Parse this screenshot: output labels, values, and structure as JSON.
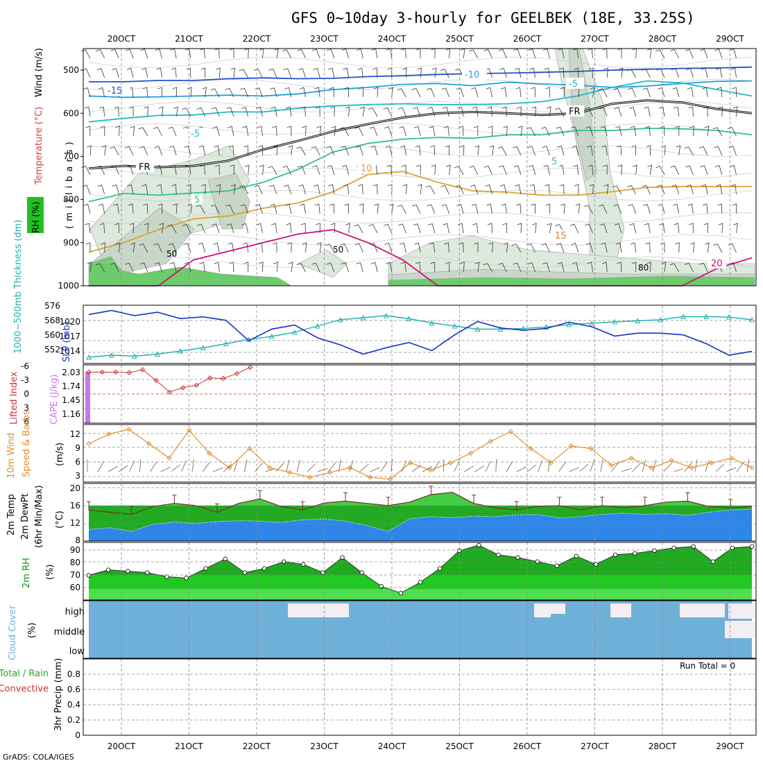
{
  "title": "GFS 0~10day 3-hourly for GEELBEK (18E, 33.25S)",
  "credit": "GrADS: COLA/IGES",
  "run_total": "Run Total = 0",
  "x_ticks": [
    "20OCT",
    "21OCT",
    "22OCT",
    "23OCT",
    "24OCT",
    "25OCT",
    "26OCT",
    "27OCT",
    "28OCT",
    "29OCT"
  ],
  "colors": {
    "grid": "#888888",
    "dewpoint": "#2e86e8",
    "temp": "#22b022",
    "rh": "#0a9a0a",
    "cloud": "#6fb0d8",
    "slp": "#1530c8",
    "thickness": "#20b0b0",
    "cape": "#c878e8",
    "li": "#d03030",
    "wind": "#e09030"
  },
  "chart_data": [
    {
      "type": "contour",
      "name": "upper_air",
      "y_ticks": [
        "500",
        "600",
        "700",
        "800",
        "900",
        "1000"
      ],
      "ylim": [
        1000,
        450
      ],
      "labels": {
        "wind": "Wind (m/s)",
        "temperature": "Temperature (°C)",
        "rh": "RH (%)",
        "axis": "(millibars)",
        "isotherms": [
          "-15",
          "-10",
          "-5",
          "-5",
          "5",
          "5",
          "10",
          "15",
          "20",
          "FR",
          "FR"
        ],
        "rh_contours": [
          "50",
          "50",
          "80"
        ]
      },
      "isotherms": [
        {
          "level": -15,
          "color": "#2050d0",
          "p": [
            527,
            527,
            524,
            524,
            520,
            518,
            520,
            519,
            515,
            513,
            510,
            508,
            507,
            505,
            503,
            500,
            498,
            496,
            495,
            493
          ]
        },
        {
          "level": -10,
          "color": "#20a0e0",
          "p": [
            560,
            563,
            562,
            560,
            558,
            560,
            555,
            545,
            540,
            533,
            531,
            536,
            528,
            532,
            535,
            540,
            537,
            531,
            526,
            525
          ]
        },
        {
          "level": -5,
          "color": "#20b8c8",
          "p": [
            620,
            612,
            605,
            604,
            597,
            597,
            588,
            583,
            580,
            578,
            580,
            580,
            578,
            573,
            560,
            540,
            525,
            530,
            545,
            560
          ]
        },
        {
          "level": 0,
          "color": "#000000",
          "p": [
            728,
            722,
            725,
            722,
            710,
            684,
            664,
            642,
            625,
            610,
            600,
            597,
            600,
            604,
            600,
            578,
            570,
            575,
            590,
            600
          ]
        },
        {
          "level": 5,
          "color": "#30c090",
          "p": [
            805,
            786,
            790,
            785,
            780,
            760,
            730,
            690,
            670,
            660,
            656,
            658,
            650,
            650,
            640,
            640,
            635,
            636,
            640,
            650
          ]
        },
        {
          "level": 10,
          "color": "#e0a030",
          "p": [
            922,
            900,
            870,
            845,
            838,
            820,
            808,
            782,
            742,
            735,
            760,
            780,
            783,
            790,
            790,
            782,
            772,
            770,
            770,
            770
          ]
        },
        {
          "level": 20,
          "color": "#d0107a",
          "p": [
            1000,
            1000,
            1000,
            940,
            920,
            900,
            880,
            870,
            900,
            940,
            1000,
            1000,
            1000,
            1000,
            1000,
            1000,
            1000,
            1000,
            960,
            935
          ]
        }
      ]
    },
    {
      "type": "line",
      "name": "slp_thickness",
      "labels": {
        "thickness": "1000~500mb Thickness (dm)",
        "slp": "SLP (mb)"
      },
      "y_ticks_left": [
        "576",
        "568",
        "560",
        "552"
      ],
      "y_ticks_right": [
        "1020",
        "1017",
        "1014"
      ],
      "thickness_ylim": [
        548,
        576
      ],
      "slp_ylim": [
        1012.6,
        1022.6
      ],
      "series": [
        {
          "name": "SLP",
          "values": [
            1021.0,
            1021.7,
            1020.8,
            1021.4,
            1020.3,
            1020.6,
            1020.0,
            1016.5,
            1018.5,
            1019.2,
            1017.0,
            1015.8,
            1014.2,
            1015.3,
            1016.2,
            1014.8,
            1017.5,
            1019.8,
            1018.7,
            1018.3,
            1018.6,
            1019.7,
            1018.9,
            1017.3,
            1017.8,
            1017.8,
            1017.5,
            1016.0,
            1014.0,
            1014.7
          ]
        },
        {
          "name": "Thickness",
          "values": [
            551.0,
            552.0,
            551.5,
            552.5,
            554.0,
            555.5,
            557.5,
            559.5,
            561.0,
            563.0,
            566.0,
            569.0,
            570.0,
            571.0,
            569.5,
            567.5,
            566.0,
            564.5,
            564.5,
            564.8,
            565.5,
            566.7,
            567.3,
            568.0,
            568.5,
            569.0,
            570.5,
            570.5,
            570.3,
            569.0
          ]
        }
      ]
    },
    {
      "type": "line",
      "name": "instability",
      "labels": {
        "li": "Lifted Index",
        "cape": "CAPE (J/kg)"
      },
      "y_ticks_li": [
        "-6",
        "-3",
        "0",
        "3",
        "6"
      ],
      "y_ticks_cape": [
        "2.03",
        "1.74",
        "1.45",
        "1.16"
      ],
      "li_ylim": [
        6,
        -6
      ],
      "li": [
        4.5,
        4.5,
        4.5,
        4.4,
        5.0,
        2.8,
        0.4,
        1.3,
        1.8,
        3.3,
        3.2,
        4.2,
        5.5
      ],
      "cape_bar": 2.03
    },
    {
      "type": "line",
      "name": "wind10m",
      "labels": {
        "title": "10m Wind",
        "sub": "Speed & Barbs",
        "unit": "(m/s)"
      },
      "y_ticks": [
        "12",
        "9",
        "6",
        "3"
      ],
      "ylim": [
        2,
        14
      ],
      "values": [
        10.0,
        12.0,
        13.0,
        10.0,
        7.0,
        12.8,
        8.0,
        5.0,
        9.0,
        5.0,
        4.0,
        3.0,
        4.0,
        5.0,
        3.0,
        2.6,
        6.0,
        4.5,
        6.0,
        8.0,
        10.5,
        12.5,
        9.0,
        6.0,
        9.5,
        9.0,
        5.5,
        7.0,
        5.0,
        6.5,
        5.0,
        6.0,
        7.0,
        5.0
      ]
    },
    {
      "type": "area",
      "name": "temp2m",
      "labels": {
        "title": "2m Temp",
        "sub": "2m DewPt",
        "sub2": "(6hr Min/Max)",
        "unit": "(°C)"
      },
      "y_ticks": [
        "20",
        "16",
        "12",
        "8"
      ],
      "ylim": [
        8,
        21
      ],
      "temp": [
        15.0,
        14.5,
        14.0,
        15.8,
        16.5,
        16.0,
        14.5,
        16.5,
        17.5,
        15.8,
        15.0,
        16.6,
        17.0,
        16.5,
        16.0,
        16.8,
        18.5,
        19.0,
        16.5,
        15.5,
        15.0,
        15.8,
        16.0,
        15.0,
        16.0,
        15.5,
        16.0,
        16.8,
        17.0,
        15.8,
        15.5,
        15.8
      ],
      "dewpt": [
        10.6,
        11.0,
        10.2,
        11.8,
        12.3,
        12.0,
        12.4,
        12.6,
        12.5,
        12.2,
        12.8,
        13.0,
        12.5,
        11.5,
        10.2,
        13.0,
        13.5,
        13.3,
        13.6,
        13.5,
        13.9,
        14.0,
        13.2,
        13.5,
        14.0,
        14.3,
        14.0,
        14.2,
        13.8,
        14.5,
        15.0,
        15.2
      ]
    },
    {
      "type": "area",
      "name": "rh2m",
      "labels": {
        "title": "2m RH",
        "unit": "(%)"
      },
      "y_ticks": [
        "90",
        "80",
        "70",
        "60"
      ],
      "ylim": [
        52,
        94
      ],
      "values": [
        70,
        74,
        73,
        72,
        69,
        68,
        75,
        82,
        72,
        75,
        80,
        78,
        72,
        83,
        72,
        62,
        57,
        65,
        75,
        88,
        92,
        85,
        83,
        80,
        77,
        84,
        78,
        85,
        86,
        88,
        90,
        91,
        80,
        90,
        91
      ]
    },
    {
      "type": "bar",
      "name": "cloud_cover",
      "labels": {
        "title": "Cloud Cover",
        "unit": "(%)",
        "high": "high",
        "middle": "middle",
        "low": "low"
      },
      "bands": [
        "high",
        "middle",
        "low"
      ]
    },
    {
      "type": "bar",
      "name": "precip",
      "labels": {
        "title": "3hr Precip (mm)",
        "total_rain": "Total / Rain",
        "convective": "Convective"
      },
      "y_ticks": [
        "0",
        "0.2",
        "0.4",
        "0.6",
        "0.8"
      ],
      "ylim": [
        0,
        1
      ],
      "values": []
    }
  ]
}
